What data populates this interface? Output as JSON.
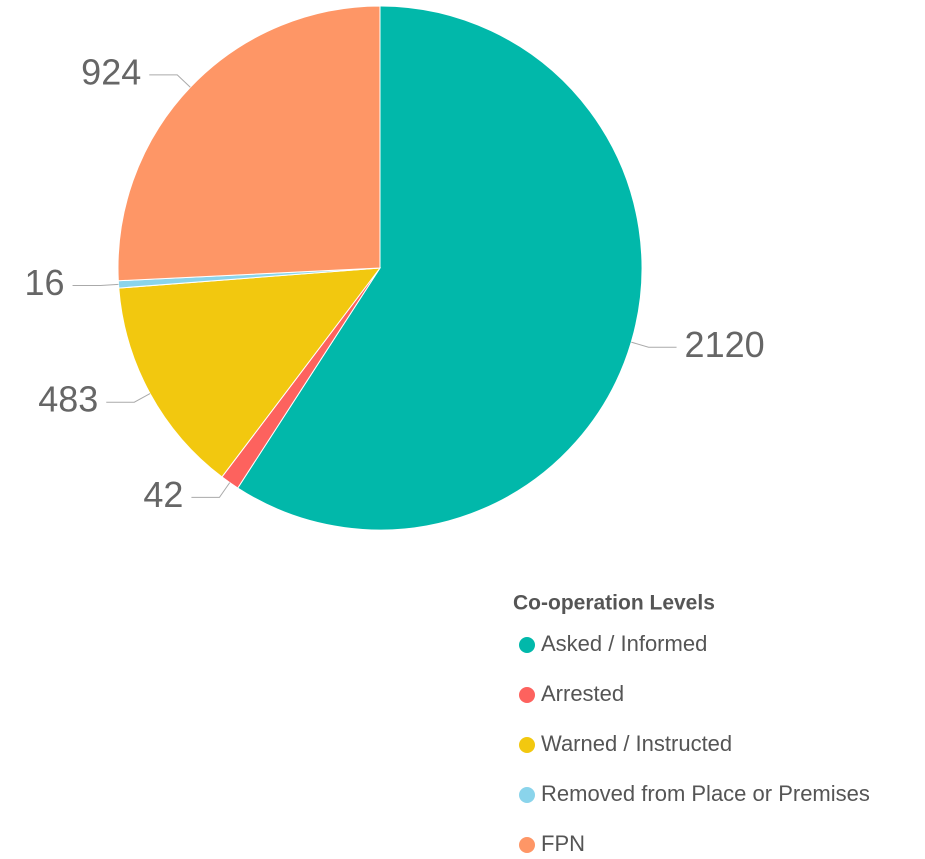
{
  "chart_data": {
    "type": "pie",
    "categories": [
      "Asked / Informed",
      "Arrested",
      "Warned / Instructed",
      "Removed from Place or Premises",
      "FPN"
    ],
    "values": [
      2120,
      42,
      483,
      16,
      924
    ],
    "colors": [
      "#01b8aa",
      "#fd625e",
      "#f2c80f",
      "#8ad4eb",
      "#fe9666"
    ],
    "legend_title": "Co-operation Levels"
  }
}
